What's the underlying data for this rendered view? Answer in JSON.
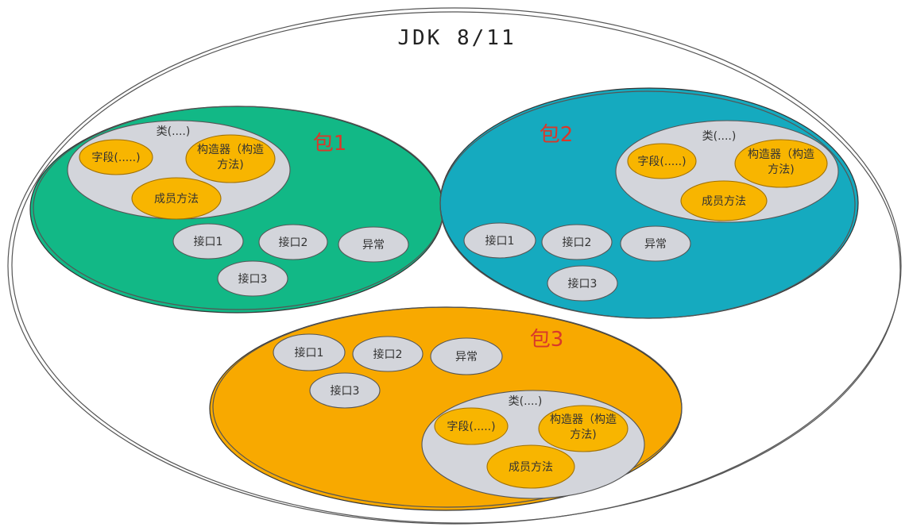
{
  "title": "JDK 8/11",
  "packages": [
    {
      "label": "包1",
      "color": "#12b886",
      "class_label": "类(....)",
      "members": [
        "字段(.....)",
        "构造器（构造",
        "方法)",
        "成员方法"
      ],
      "items": [
        "接口1",
        "接口2",
        "异常",
        "接口3"
      ]
    },
    {
      "label": "包2",
      "color": "#15aabf",
      "class_label": "类(....)",
      "members": [
        "字段(.....)",
        "构造器（构造",
        "方法)",
        "成员方法"
      ],
      "items": [
        "接口1",
        "接口2",
        "异常",
        "接口3"
      ]
    },
    {
      "label": "包3",
      "color": "#f8a900",
      "class_label": "类(....)",
      "members": [
        "字段(.....)",
        "构造器（构造",
        "方法)",
        "成员方法"
      ],
      "items": [
        "接口1",
        "接口2",
        "异常",
        "接口3"
      ]
    }
  ]
}
